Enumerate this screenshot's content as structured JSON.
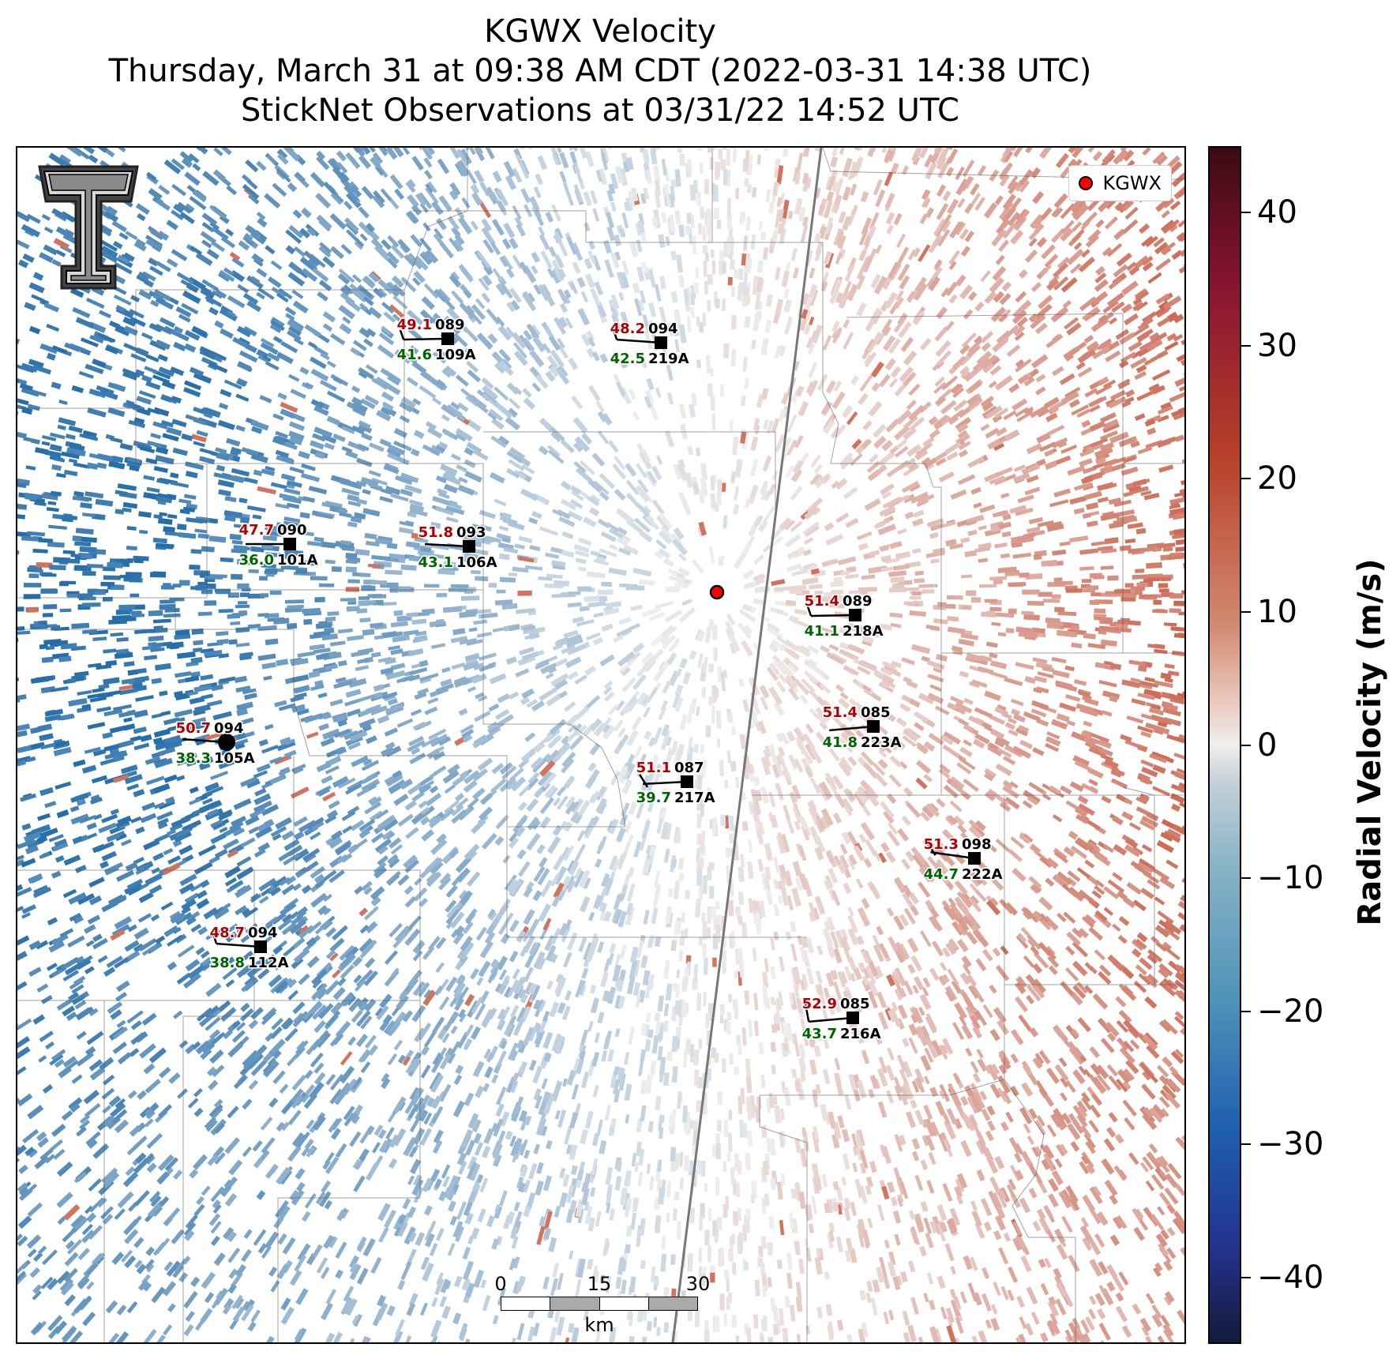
{
  "title": {
    "line1": "KGWX Velocity",
    "line2": "Thursday, March 31 at 09:38 AM CDT (2022-03-31 14:38 UTC)",
    "line3": "StickNet Observations at 03/31/22 14:52 UTC"
  },
  "legend": {
    "label": "KGWX",
    "marker_color": "#ff0000"
  },
  "colorbar": {
    "label": "Radial Velocity (m/s)",
    "ticks": [
      "40",
      "30",
      "20",
      "10",
      "0",
      "−10",
      "−20",
      "−30",
      "−40"
    ],
    "range": [
      -45,
      45
    ]
  },
  "scalebar": {
    "labels": [
      "0",
      "15",
      "30"
    ],
    "unit": "km"
  },
  "radar_site": "KGWX",
  "stations": [
    {
      "id": "109A",
      "temp": "49.1",
      "dir": "089",
      "dew": "41.6"
    },
    {
      "id": "219A",
      "temp": "48.2",
      "dir": "094",
      "dew": "42.5"
    },
    {
      "id": "101A",
      "temp": "47.7",
      "dir": "090",
      "dew": "36.0"
    },
    {
      "id": "106A",
      "temp": "51.8",
      "dir": "093",
      "dew": "43.1"
    },
    {
      "id": "218A",
      "temp": "51.4",
      "dir": "089",
      "dew": "41.1"
    },
    {
      "id": "105A",
      "temp": "50.7",
      "dir": "094",
      "dew": "38.3"
    },
    {
      "id": "223A",
      "temp": "51.4",
      "dir": "085",
      "dew": "41.8"
    },
    {
      "id": "217A",
      "temp": "51.1",
      "dir": "087",
      "dew": "39.7"
    },
    {
      "id": "222A",
      "temp": "51.3",
      "dir": "098",
      "dew": "44.7"
    },
    {
      "id": "112A",
      "temp": "48.7",
      "dir": "094",
      "dew": "38.8"
    },
    {
      "id": "216A",
      "temp": "52.9",
      "dir": "085",
      "dew": "43.7"
    }
  ],
  "colors": {
    "temp": "#b00000",
    "dew": "#006400",
    "station": "#000000"
  }
}
